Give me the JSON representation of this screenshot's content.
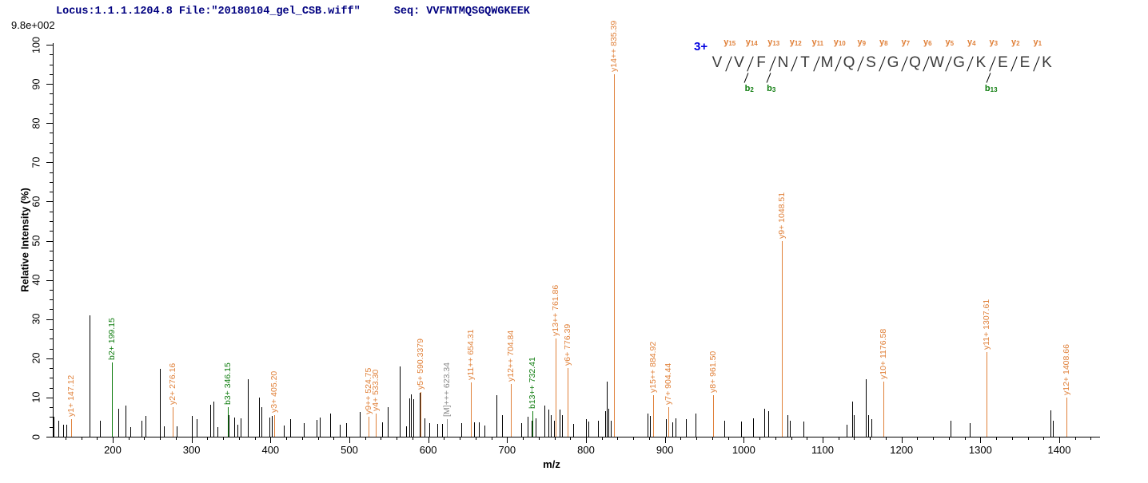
{
  "header": {
    "locus_file": "Locus:1.1.1.1204.8 File:\"20180104_gel_CSB.wiff\"",
    "seq": "Seq: VVFNTMQSGQWGKEEK",
    "max_intensity": "9.8e+002"
  },
  "peptide": {
    "charge_label": "3+",
    "residues": [
      "V",
      "V",
      "F",
      "N",
      "T",
      "M",
      "Q",
      "S",
      "G",
      "Q",
      "W",
      "G",
      "K",
      "E",
      "E",
      "K"
    ],
    "y_ion_labels": [
      "y15",
      "y14",
      "y13",
      "y12",
      "y11",
      "y10",
      "y9",
      "y8",
      "y7",
      "y6",
      "y5",
      "y4",
      "y3",
      "y2",
      "y1"
    ],
    "b_ion_labels": [
      {
        "label": "b2",
        "gap": 2
      },
      {
        "label": "b3",
        "gap": 3
      },
      {
        "label": "b13",
        "gap": 13
      }
    ]
  },
  "chart_data": {
    "type": "bar",
    "title": "MS/MS fragment spectrum",
    "xlabel": "m/z",
    "ylabel": "Relative  Intensity (%)",
    "x_axis": {
      "range": [
        124,
        1452
      ],
      "major_tick_start": 200,
      "major_tick_end": 1400,
      "major_tick_step": 100,
      "minor_tick_step": 20
    },
    "y_axis": {
      "range": [
        0,
        100
      ],
      "major_tick_step": 10,
      "minor_tick_step": 2.5,
      "max_intensity_label": "9.8e+002"
    },
    "labeled_peaks": [
      {
        "label": "y1+ 147.12",
        "mz": 147.12,
        "pct": 4.5,
        "series": "y"
      },
      {
        "label": "b2+ 199.15",
        "mz": 199.15,
        "pct": 19,
        "series": "b"
      },
      {
        "label": "y2+ 276.16",
        "mz": 276.16,
        "pct": 7.5,
        "series": "y"
      },
      {
        "label": "b3+ 346.15",
        "mz": 346.15,
        "pct": 7.5,
        "series": "b"
      },
      {
        "label": "y3+ 405.20",
        "mz": 405.2,
        "pct": 5.5,
        "series": "y"
      },
      {
        "label": "y9++ 524.75",
        "mz": 524.75,
        "pct": 5,
        "series": "y"
      },
      {
        "label": "y4+ 533.30",
        "mz": 533.3,
        "pct": 6,
        "series": "y"
      },
      {
        "label": "y5+ 590.3379",
        "mz": 590.3379,
        "pct": 11.5,
        "series": "y"
      },
      {
        "label": "[M]+++ 623.34",
        "mz": 623.34,
        "pct": 4.5,
        "series": "M"
      },
      {
        "label": "y11++ 654.31",
        "mz": 654.31,
        "pct": 13.8,
        "series": "y"
      },
      {
        "label": "y12++ 704.84",
        "mz": 704.84,
        "pct": 13.5,
        "series": "y"
      },
      {
        "label": "b13++ 732.41",
        "mz": 732.41,
        "pct": 6.5,
        "series": "b"
      },
      {
        "label": "y13++ 761.86",
        "mz": 761.86,
        "pct": 25,
        "series": "y"
      },
      {
        "label": "y6+ 776.39",
        "mz": 776.39,
        "pct": 17.5,
        "series": "y"
      },
      {
        "label": "y14++ 835.39",
        "mz": 835.39,
        "pct": 92.5,
        "series": "y"
      },
      {
        "label": "y15++ 884.92",
        "mz": 884.92,
        "pct": 10.5,
        "series": "y"
      },
      {
        "label": "y7+ 904.44",
        "mz": 904.44,
        "pct": 7.5,
        "series": "y"
      },
      {
        "label": "y8+ 961.50",
        "mz": 961.5,
        "pct": 10.5,
        "series": "y"
      },
      {
        "label": "y9+ 1048.51",
        "mz": 1048.51,
        "pct": 50,
        "series": "y"
      },
      {
        "label": "y10+ 1176.58",
        "mz": 1176.58,
        "pct": 14,
        "series": "y"
      },
      {
        "label": "y11+ 1307.61",
        "mz": 1307.61,
        "pct": 21.5,
        "series": "y"
      },
      {
        "label": "y12+ 1408.66",
        "mz": 1408.66,
        "pct": 10,
        "series": "y"
      }
    ],
    "peaks": [
      [
        125,
        5
      ],
      [
        131,
        4
      ],
      [
        137,
        3
      ],
      [
        141,
        3
      ],
      [
        171,
        31
      ],
      [
        184,
        4
      ],
      [
        207,
        7.2
      ],
      [
        216,
        7.9
      ],
      [
        222,
        2.5
      ],
      [
        236,
        4
      ],
      [
        242,
        5.2
      ],
      [
        260,
        17.4
      ],
      [
        265,
        2.6
      ],
      [
        281,
        2.6
      ],
      [
        300,
        5.2
      ],
      [
        306,
        4.5
      ],
      [
        324,
        8.2
      ],
      [
        328,
        9
      ],
      [
        333,
        2.4
      ],
      [
        347,
        5.5
      ],
      [
        354,
        4.8
      ],
      [
        358,
        3
      ],
      [
        362,
        4.6
      ],
      [
        371,
        14.7
      ],
      [
        385,
        10
      ],
      [
        389,
        7.5
      ],
      [
        399,
        4.8
      ],
      [
        402,
        5.2
      ],
      [
        417,
        2.8
      ],
      [
        425,
        4.4
      ],
      [
        442,
        3.5
      ],
      [
        458,
        4.2
      ],
      [
        463,
        4.9
      ],
      [
        476,
        5.9
      ],
      [
        488,
        3.1
      ],
      [
        496,
        3.4
      ],
      [
        513,
        6.3
      ],
      [
        542,
        3.7
      ],
      [
        549,
        7.6
      ],
      [
        564,
        18
      ],
      [
        572,
        2.7
      ],
      [
        576,
        9.8
      ],
      [
        578,
        10.8
      ],
      [
        581,
        9.5
      ],
      [
        589,
        11.2
      ],
      [
        595,
        4.6
      ],
      [
        601,
        3.5
      ],
      [
        611,
        3.2
      ],
      [
        618,
        3.2
      ],
      [
        642,
        3.5
      ],
      [
        658,
        3.6
      ],
      [
        664,
        3.6
      ],
      [
        671,
        2.8
      ],
      [
        686,
        10.6
      ],
      [
        694,
        5.5
      ],
      [
        718,
        3.5
      ],
      [
        726,
        5
      ],
      [
        731,
        4
      ],
      [
        736,
        4.6
      ],
      [
        747,
        8
      ],
      [
        752,
        7
      ],
      [
        755,
        5.5
      ],
      [
        759,
        4
      ],
      [
        767,
        7
      ],
      [
        770,
        5.5
      ],
      [
        784,
        3.2
      ],
      [
        800,
        4.5
      ],
      [
        803,
        3.8
      ],
      [
        815,
        4.1
      ],
      [
        824,
        6.5
      ],
      [
        826,
        14
      ],
      [
        828,
        7.2
      ],
      [
        831,
        4
      ],
      [
        878,
        6
      ],
      [
        881,
        5.2
      ],
      [
        901,
        4.4
      ],
      [
        909,
        3.7
      ],
      [
        913,
        4.7
      ],
      [
        927,
        4.4
      ],
      [
        939,
        5.9
      ],
      [
        975,
        4.1
      ],
      [
        997,
        3.9
      ],
      [
        1012,
        4.7
      ],
      [
        1026,
        7.2
      ],
      [
        1031,
        6.5
      ],
      [
        1055,
        5.5
      ],
      [
        1058,
        4
      ],
      [
        1076,
        3.8
      ],
      [
        1130,
        3
      ],
      [
        1137,
        8.9
      ],
      [
        1140,
        5.5
      ],
      [
        1155,
        14.7
      ],
      [
        1158,
        5.5
      ],
      [
        1162,
        4.5
      ],
      [
        1262,
        4.1
      ],
      [
        1286,
        3.5
      ],
      [
        1389,
        6.8
      ],
      [
        1392,
        4
      ]
    ]
  },
  "colors": {
    "y_ion": "#e0813a",
    "b_ion": "#0e7c0e",
    "precursor": "#8a8a8a",
    "peak": "#000000",
    "axis": "#000000",
    "header_text": "#000080",
    "charge": "#0000e0",
    "residue": "#3b3b3b"
  }
}
